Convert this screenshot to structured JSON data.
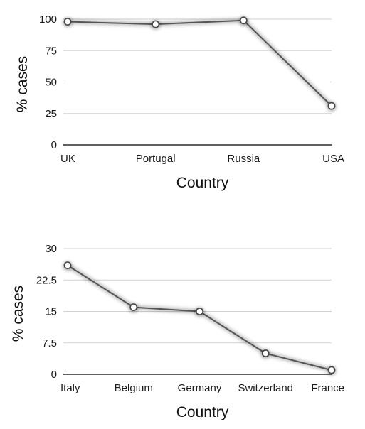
{
  "colors": {
    "line": "#555555",
    "marker_edge": "#444444",
    "marker_fill": "#ffffff",
    "grid": "#d2d2d2"
  },
  "chart_data": [
    {
      "type": "line",
      "categories": [
        "UK",
        "Portugal",
        "Russia",
        "USA"
      ],
      "values": [
        98,
        96,
        99,
        31
      ],
      "xlabel": "Country",
      "ylabel": "% cases",
      "ylim": [
        0,
        100
      ],
      "yticks": [
        "0",
        "25",
        "50",
        "75",
        "100"
      ],
      "grid": "horizontal",
      "markers": "open-circle"
    },
    {
      "type": "line",
      "categories": [
        "Italy",
        "Belgium",
        "Germany",
        "Switzerland",
        "France"
      ],
      "values": [
        26,
        16,
        15,
        5,
        1
      ],
      "xlabel": "Country",
      "ylabel": "% cases",
      "ylim": [
        0,
        30
      ],
      "yticks": [
        "0",
        "7.5",
        "15",
        "22.5",
        "30"
      ],
      "grid": "horizontal",
      "markers": "open-circle"
    }
  ]
}
